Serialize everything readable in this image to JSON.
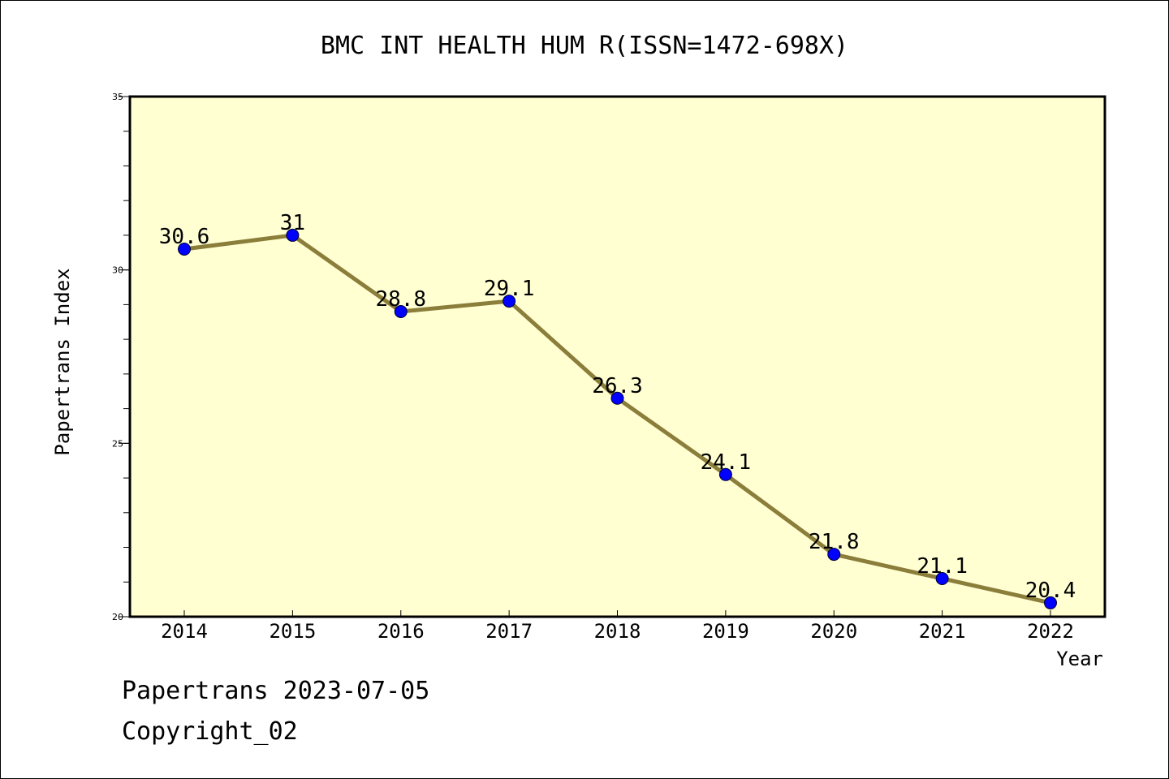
{
  "chart_data": {
    "type": "line",
    "title": "BMC INT HEALTH HUM R(ISSN=1472-698X)",
    "xlabel": "Year",
    "ylabel": "Papertrans Index",
    "x": [
      "2014",
      "2015",
      "2016",
      "2017",
      "2018",
      "2019",
      "2020",
      "2021",
      "2022"
    ],
    "series": [
      {
        "values": [
          30.6,
          31,
          28.8,
          29.1,
          26.3,
          24.1,
          21.8,
          21.1,
          20.4
        ],
        "labels": [
          "30.6",
          "31",
          "28.8",
          "29.1",
          "26.3",
          "24.1",
          "21.8",
          "21.1",
          "20.4"
        ]
      }
    ],
    "ylim": [
      20,
      35
    ],
    "y_major_ticks": [
      20,
      25,
      30,
      35
    ],
    "y_major_tick_labels": [
      "20",
      "25",
      "30",
      "35"
    ],
    "y_minor_step": 1,
    "grid": false,
    "colors": {
      "plot_background": "#ffffd2",
      "line": "#8b7d3a",
      "marker": "#0000ff"
    }
  },
  "footer": {
    "line1": "Papertrans 2023-07-05",
    "line2": "Copyright_02"
  }
}
